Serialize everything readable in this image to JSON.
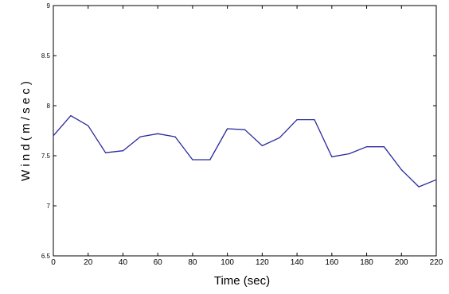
{
  "chart_data": {
    "type": "line",
    "title": "",
    "xlabel": "Time  (sec)",
    "ylabel": "W i n d  ( m / s e c )",
    "xlim": [
      0,
      220
    ],
    "ylim": [
      6.5,
      9
    ],
    "xticks": [
      0,
      20,
      40,
      60,
      80,
      100,
      120,
      140,
      160,
      180,
      200,
      220
    ],
    "xtick_labels": [
      "0",
      "20",
      "40",
      "60",
      "80",
      "100",
      "120",
      "140",
      "160",
      "180",
      "200",
      "220"
    ],
    "yticks": [
      6.5,
      7,
      7.5,
      8,
      8.5,
      9
    ],
    "ytick_labels": [
      "6.5",
      "7",
      "7.5",
      "8",
      "8.5",
      "9"
    ],
    "grid": false,
    "legend": "none",
    "series": [
      {
        "color": "#2a2a9e",
        "x": [
          0,
          10,
          20,
          30,
          40,
          50,
          60,
          70,
          80,
          90,
          100,
          110,
          120,
          130,
          140,
          150,
          160,
          170,
          180,
          190,
          200,
          210,
          220
        ],
        "y": [
          7.7,
          7.9,
          7.8,
          7.53,
          7.55,
          7.69,
          7.72,
          7.69,
          7.46,
          7.46,
          7.77,
          7.76,
          7.6,
          7.68,
          7.86,
          7.86,
          7.49,
          7.52,
          7.59,
          7.59,
          7.36,
          7.19,
          7.26
        ]
      }
    ]
  }
}
